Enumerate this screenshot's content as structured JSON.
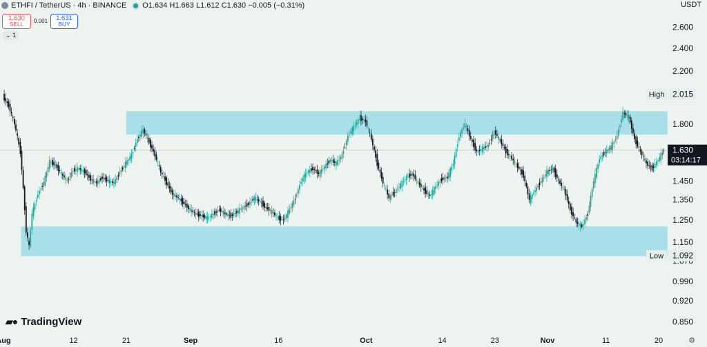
{
  "header": {
    "symbol": "ETHFI / TetherUS · 4h · BINANCE",
    "ohlc": "O1.634  H1.663  L1.612  C1.630  −0.005 (−0.31%)"
  },
  "trade": {
    "sell_price": "1.630",
    "sell_label": "SELL",
    "spread": "0.001",
    "buy_price": "1.631",
    "buy_label": "BUY"
  },
  "collapse_label": "⌄ 1",
  "currency": "USDT",
  "brand": "TradingView",
  "icons": {
    "logo": "coin-logo-icon",
    "status": "market-open-dot-icon",
    "settings": "gear-icon",
    "brand": "tradingview-logo-icon"
  },
  "colors": {
    "up": "#26a69a",
    "down": "#131722",
    "zone": "#a9dfe8",
    "background": "#edf3ef"
  },
  "chart_data": {
    "type": "candlestick",
    "timeframe": "4h",
    "yaxis": {
      "scale": "log",
      "ylim": [
        0.82,
        2.75
      ],
      "ticks": [
        "2.600",
        "2.400",
        "2.200",
        "1.800",
        "1.450",
        "1.350",
        "1.250",
        "1.150",
        "1.070",
        "0.990",
        "0.920",
        "0.850"
      ]
    },
    "xaxis": {
      "tick_labels": [
        "Aug",
        "12",
        "21",
        "Sep",
        "16",
        "Oct",
        "14",
        "23",
        "Nov",
        "11",
        "20"
      ],
      "tick_days": [
        0,
        12,
        21,
        32,
        47,
        62,
        75,
        84,
        93,
        103,
        112
      ]
    },
    "zones": [
      {
        "name": "resistance",
        "from": 1.73,
        "to": 1.89,
        "start_day": 21.0,
        "end_day": 113.5
      },
      {
        "name": "support",
        "from": 1.09,
        "to": 1.22,
        "start_day": 3.0,
        "end_day": 113.5
      }
    ],
    "markers": {
      "high": {
        "label": "High",
        "value": "2.015"
      },
      "low": {
        "label": "Low",
        "value": "1.092"
      }
    },
    "last_price": {
      "value": "1.630",
      "countdown": "03:14:17"
    },
    "series": [
      {
        "name": "ETHFI/USDT",
        "points": [
          [
            0,
            2.0
          ],
          [
            1,
            1.93
          ],
          [
            2,
            1.8
          ],
          [
            3,
            1.62
          ],
          [
            4,
            1.2
          ],
          [
            4.5,
            1.13
          ],
          [
            5,
            1.28
          ],
          [
            6,
            1.38
          ],
          [
            7,
            1.44
          ],
          [
            8,
            1.56
          ],
          [
            9,
            1.54
          ],
          [
            10,
            1.49
          ],
          [
            11,
            1.45
          ],
          [
            12,
            1.51
          ],
          [
            13,
            1.52
          ],
          [
            14,
            1.5
          ],
          [
            15,
            1.46
          ],
          [
            16,
            1.44
          ],
          [
            17,
            1.47
          ],
          [
            18,
            1.45
          ],
          [
            19,
            1.44
          ],
          [
            20,
            1.5
          ],
          [
            21,
            1.55
          ],
          [
            22,
            1.6
          ],
          [
            23,
            1.7
          ],
          [
            24,
            1.76
          ],
          [
            25,
            1.68
          ],
          [
            26,
            1.6
          ],
          [
            27,
            1.5
          ],
          [
            28,
            1.44
          ],
          [
            29,
            1.38
          ],
          [
            30,
            1.36
          ],
          [
            31,
            1.33
          ],
          [
            32,
            1.3
          ],
          [
            33,
            1.28
          ],
          [
            34,
            1.27
          ],
          [
            35,
            1.26
          ],
          [
            36,
            1.28
          ],
          [
            37,
            1.3
          ],
          [
            38,
            1.28
          ],
          [
            39,
            1.27
          ],
          [
            40,
            1.29
          ],
          [
            41,
            1.31
          ],
          [
            42,
            1.33
          ],
          [
            43,
            1.36
          ],
          [
            44,
            1.34
          ],
          [
            45,
            1.31
          ],
          [
            46,
            1.29
          ],
          [
            47,
            1.26
          ],
          [
            48,
            1.25
          ],
          [
            49,
            1.3
          ],
          [
            50,
            1.36
          ],
          [
            51,
            1.45
          ],
          [
            52,
            1.5
          ],
          [
            53,
            1.52
          ],
          [
            54,
            1.49
          ],
          [
            55,
            1.53
          ],
          [
            56,
            1.57
          ],
          [
            57,
            1.55
          ],
          [
            58,
            1.6
          ],
          [
            59,
            1.72
          ],
          [
            60,
            1.78
          ],
          [
            61,
            1.84
          ],
          [
            62,
            1.82
          ],
          [
            63,
            1.7
          ],
          [
            64,
            1.55
          ],
          [
            65,
            1.44
          ],
          [
            66,
            1.36
          ],
          [
            67,
            1.39
          ],
          [
            68,
            1.43
          ],
          [
            69,
            1.47
          ],
          [
            70,
            1.49
          ],
          [
            71,
            1.44
          ],
          [
            72,
            1.4
          ],
          [
            73,
            1.37
          ],
          [
            74,
            1.42
          ],
          [
            75,
            1.46
          ],
          [
            76,
            1.47
          ],
          [
            77,
            1.55
          ],
          [
            78,
            1.72
          ],
          [
            79,
            1.8
          ],
          [
            80,
            1.7
          ],
          [
            81,
            1.62
          ],
          [
            82,
            1.64
          ],
          [
            83,
            1.66
          ],
          [
            84,
            1.75
          ],
          [
            85,
            1.69
          ],
          [
            86,
            1.62
          ],
          [
            87,
            1.58
          ],
          [
            88,
            1.53
          ],
          [
            89,
            1.48
          ],
          [
            90,
            1.35
          ],
          [
            91,
            1.4
          ],
          [
            92,
            1.45
          ],
          [
            93,
            1.5
          ],
          [
            94,
            1.52
          ],
          [
            95,
            1.45
          ],
          [
            96,
            1.4
          ],
          [
            97,
            1.3
          ],
          [
            98,
            1.24
          ],
          [
            99,
            1.22
          ],
          [
            100,
            1.28
          ],
          [
            101,
            1.45
          ],
          [
            102,
            1.58
          ],
          [
            103,
            1.62
          ],
          [
            104,
            1.65
          ],
          [
            105,
            1.72
          ],
          [
            106,
            1.88
          ],
          [
            107,
            1.85
          ],
          [
            108,
            1.7
          ],
          [
            109,
            1.62
          ],
          [
            110,
            1.55
          ],
          [
            111,
            1.52
          ],
          [
            112,
            1.57
          ],
          [
            113,
            1.63
          ]
        ]
      }
    ]
  }
}
